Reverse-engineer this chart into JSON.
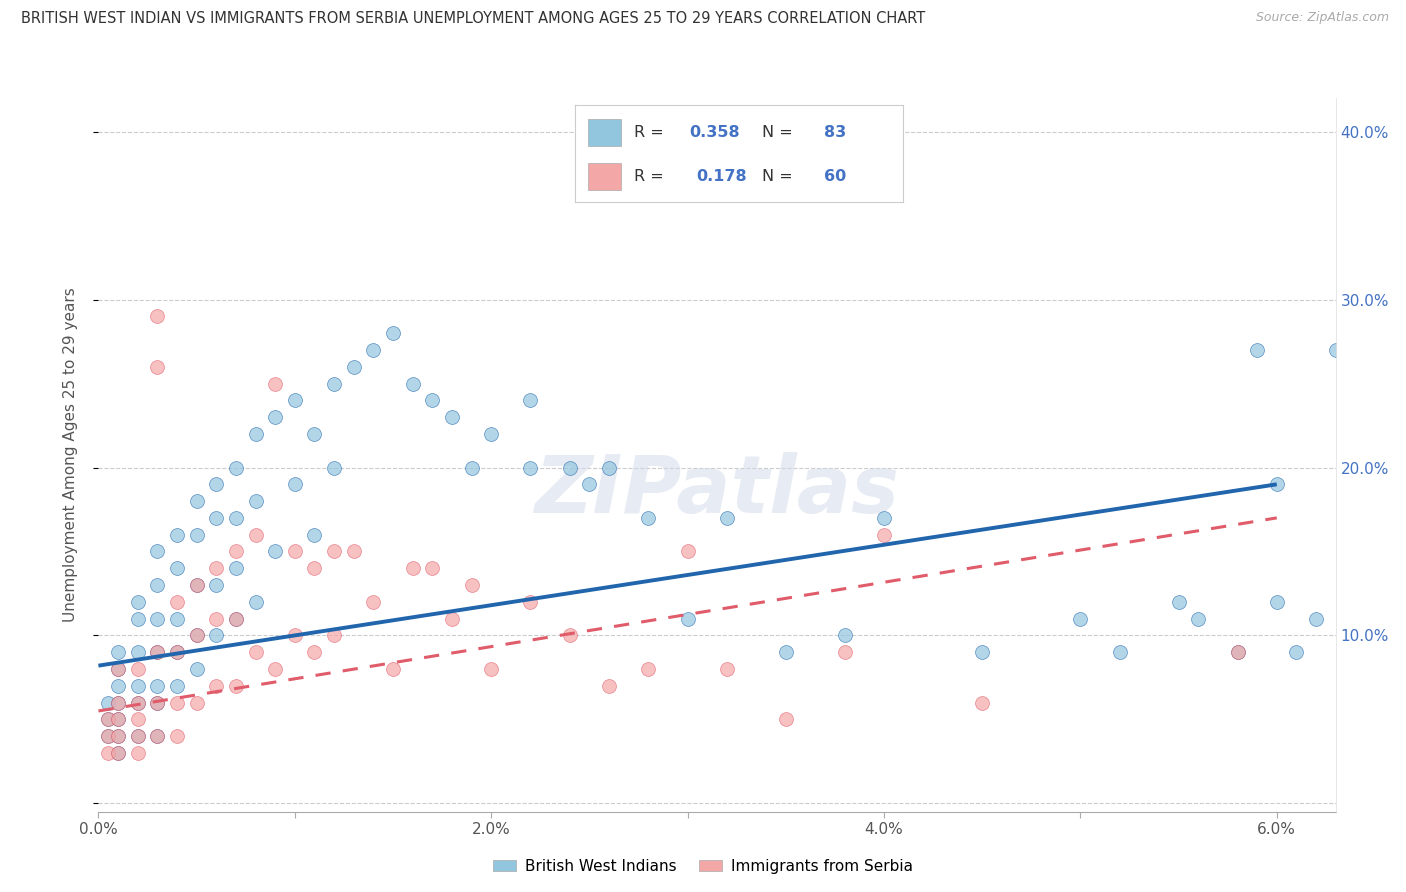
{
  "title": "BRITISH WEST INDIAN VS IMMIGRANTS FROM SERBIA UNEMPLOYMENT AMONG AGES 25 TO 29 YEARS CORRELATION CHART",
  "source": "Source: ZipAtlas.com",
  "ylabel": "Unemployment Among Ages 25 to 29 years",
  "xlim": [
    0.0,
    0.063
  ],
  "ylim": [
    -0.005,
    0.42
  ],
  "xtick_vals": [
    0.0,
    0.01,
    0.02,
    0.03,
    0.04,
    0.05,
    0.06
  ],
  "xticklabels": [
    "0.0%",
    "",
    "2.0%",
    "",
    "4.0%",
    "",
    "6.0%"
  ],
  "ytick_vals": [
    0.0,
    0.1,
    0.2,
    0.3,
    0.4
  ],
  "yticklabels_right": [
    "",
    "10.0%",
    "20.0%",
    "30.0%",
    "40.0%"
  ],
  "blue_color": "#92c5de",
  "blue_color_line": "#2166ac",
  "pink_color": "#f4a7a7",
  "pink_color_line": "#e05c6a",
  "R_blue": 0.358,
  "N_blue": 83,
  "R_pink": 0.178,
  "N_pink": 60,
  "legend_blue_label": "British West Indians",
  "legend_pink_label": "Immigrants from Serbia",
  "watermark": "ZIPatlas",
  "blue_line_x0": 0.0,
  "blue_line_y0": 0.082,
  "blue_line_x1": 0.06,
  "blue_line_y1": 0.19,
  "pink_line_x0": 0.0,
  "pink_line_y0": 0.055,
  "pink_line_x1": 0.06,
  "pink_line_y1": 0.17,
  "blue_x": [
    0.0005,
    0.0005,
    0.0005,
    0.001,
    0.001,
    0.001,
    0.001,
    0.001,
    0.001,
    0.001,
    0.002,
    0.002,
    0.002,
    0.002,
    0.002,
    0.002,
    0.003,
    0.003,
    0.003,
    0.003,
    0.003,
    0.003,
    0.003,
    0.004,
    0.004,
    0.004,
    0.004,
    0.004,
    0.005,
    0.005,
    0.005,
    0.005,
    0.005,
    0.006,
    0.006,
    0.006,
    0.006,
    0.007,
    0.007,
    0.007,
    0.007,
    0.008,
    0.008,
    0.008,
    0.009,
    0.009,
    0.01,
    0.01,
    0.011,
    0.011,
    0.012,
    0.012,
    0.013,
    0.014,
    0.015,
    0.016,
    0.017,
    0.018,
    0.019,
    0.02,
    0.022,
    0.022,
    0.024,
    0.025,
    0.026,
    0.028,
    0.03,
    0.032,
    0.035,
    0.038,
    0.04,
    0.045,
    0.05,
    0.052,
    0.055,
    0.056,
    0.058,
    0.059,
    0.06,
    0.06,
    0.061,
    0.062,
    0.063
  ],
  "blue_y": [
    0.06,
    0.05,
    0.04,
    0.09,
    0.08,
    0.07,
    0.06,
    0.05,
    0.04,
    0.03,
    0.12,
    0.11,
    0.09,
    0.07,
    0.06,
    0.04,
    0.15,
    0.13,
    0.11,
    0.09,
    0.07,
    0.06,
    0.04,
    0.16,
    0.14,
    0.11,
    0.09,
    0.07,
    0.18,
    0.16,
    0.13,
    0.1,
    0.08,
    0.19,
    0.17,
    0.13,
    0.1,
    0.2,
    0.17,
    0.14,
    0.11,
    0.22,
    0.18,
    0.12,
    0.23,
    0.15,
    0.24,
    0.19,
    0.22,
    0.16,
    0.25,
    0.2,
    0.26,
    0.27,
    0.28,
    0.25,
    0.24,
    0.23,
    0.2,
    0.22,
    0.24,
    0.2,
    0.2,
    0.19,
    0.2,
    0.17,
    0.11,
    0.17,
    0.09,
    0.1,
    0.17,
    0.09,
    0.11,
    0.09,
    0.12,
    0.11,
    0.09,
    0.27,
    0.19,
    0.12,
    0.09,
    0.11,
    0.27
  ],
  "pink_x": [
    0.0005,
    0.0005,
    0.0005,
    0.001,
    0.001,
    0.001,
    0.001,
    0.001,
    0.002,
    0.002,
    0.002,
    0.002,
    0.002,
    0.003,
    0.003,
    0.003,
    0.003,
    0.003,
    0.004,
    0.004,
    0.004,
    0.004,
    0.005,
    0.005,
    0.005,
    0.006,
    0.006,
    0.006,
    0.007,
    0.007,
    0.007,
    0.008,
    0.008,
    0.009,
    0.009,
    0.01,
    0.01,
    0.011,
    0.011,
    0.012,
    0.012,
    0.013,
    0.014,
    0.015,
    0.016,
    0.017,
    0.018,
    0.019,
    0.02,
    0.022,
    0.024,
    0.026,
    0.028,
    0.03,
    0.032,
    0.035,
    0.038,
    0.04,
    0.045,
    0.058
  ],
  "pink_y": [
    0.05,
    0.04,
    0.03,
    0.08,
    0.06,
    0.05,
    0.04,
    0.03,
    0.08,
    0.06,
    0.05,
    0.04,
    0.03,
    0.29,
    0.26,
    0.09,
    0.06,
    0.04,
    0.12,
    0.09,
    0.06,
    0.04,
    0.13,
    0.1,
    0.06,
    0.14,
    0.11,
    0.07,
    0.15,
    0.11,
    0.07,
    0.16,
    0.09,
    0.25,
    0.08,
    0.15,
    0.1,
    0.14,
    0.09,
    0.15,
    0.1,
    0.15,
    0.12,
    0.08,
    0.14,
    0.14,
    0.11,
    0.13,
    0.08,
    0.12,
    0.1,
    0.07,
    0.08,
    0.15,
    0.08,
    0.05,
    0.09,
    0.16,
    0.06,
    0.09
  ]
}
